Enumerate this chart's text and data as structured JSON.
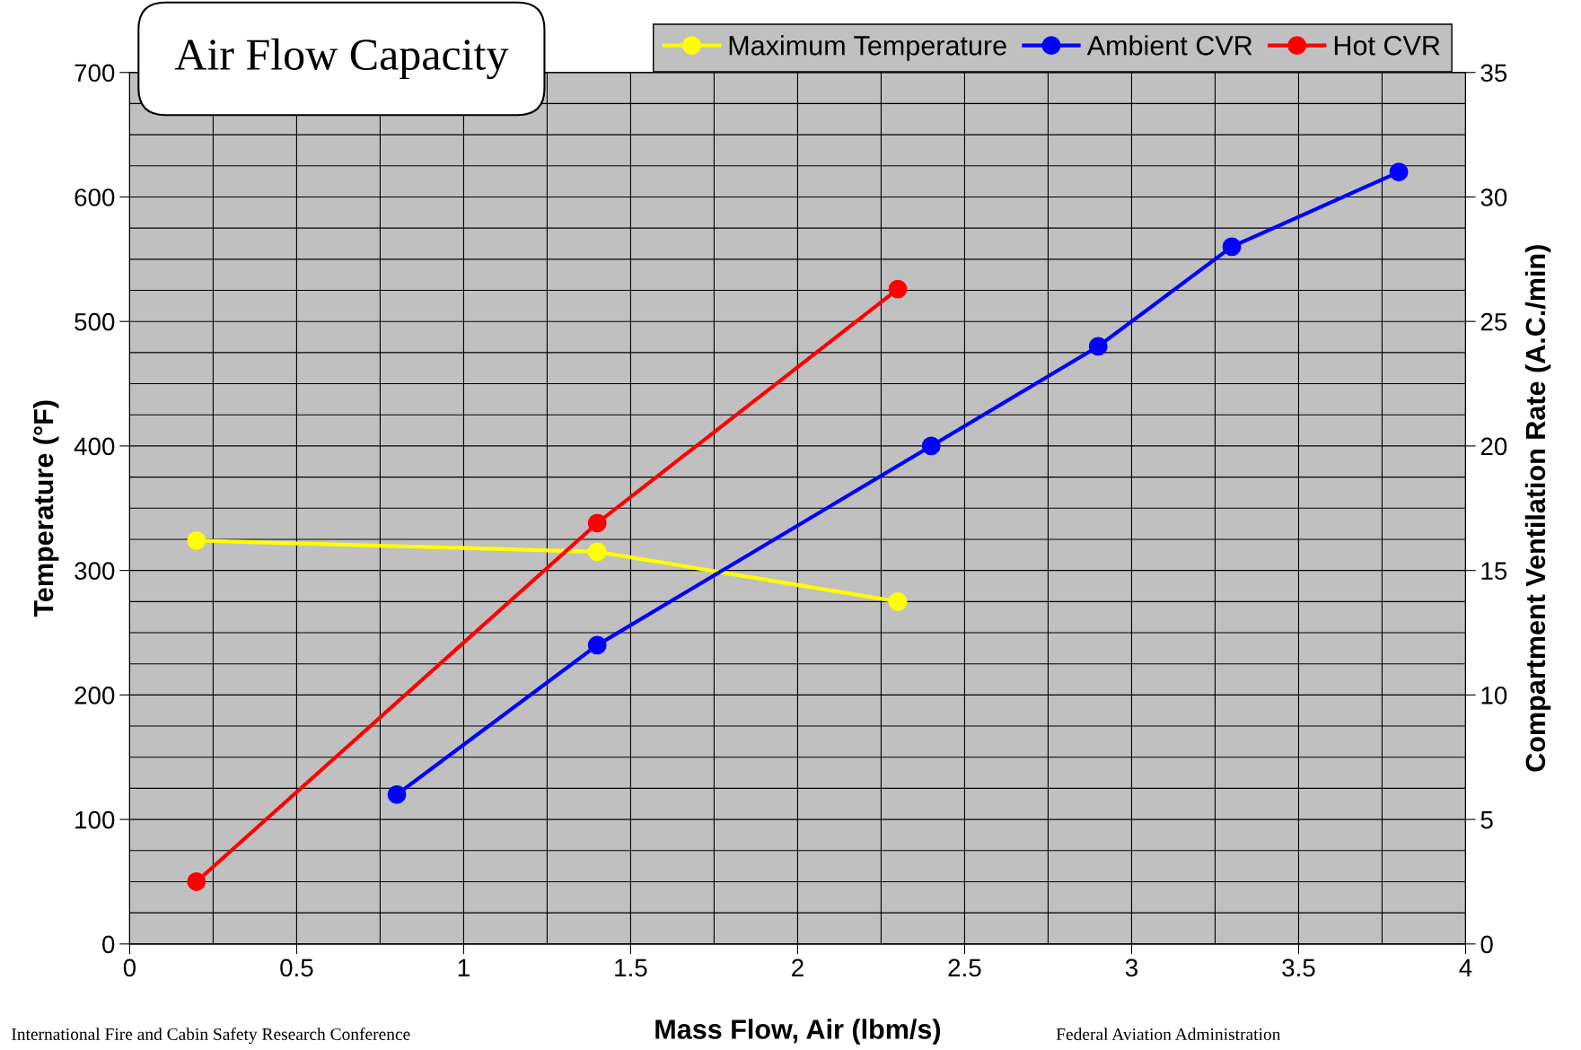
{
  "chart_data": {
    "type": "line",
    "title": "Air Flow Capacity",
    "xlabel": "Mass Flow, Air (lbm/s)",
    "ylabel": "Temperature (°F)",
    "y2label": "Compartment Ventilation Rate (A.C./min)",
    "series": [
      {
        "name": "Maximum Temperature",
        "color": "#ffff00",
        "x": [
          0.2,
          1.4,
          2.3
        ],
        "values": [
          324,
          315,
          275
        ]
      },
      {
        "name": "Ambient CVR",
        "color": "#0000ff",
        "axis": "y2",
        "x": [
          0.8,
          1.4,
          2.4,
          2.9,
          3.3,
          3.8
        ],
        "values": [
          6,
          12,
          20,
          24,
          28,
          31
        ]
      },
      {
        "name": "Hot CVR",
        "color": "#ff0000",
        "axis": "y2",
        "x": [
          0.2,
          1.4,
          2.3
        ],
        "values": [
          2.5,
          16.9,
          26.3
        ]
      }
    ],
    "xlim": [
      0,
      4
    ],
    "xticks": [
      0,
      0.5,
      1,
      1.5,
      2,
      2.5,
      3,
      3.5,
      4
    ],
    "ylim": [
      0,
      700
    ],
    "yticks": [
      0,
      100,
      200,
      300,
      400,
      500,
      600,
      700
    ],
    "y2lim": [
      0,
      35
    ],
    "y2ticks": [
      0,
      5,
      10,
      15,
      20,
      25,
      30,
      35
    ],
    "grid": true,
    "legend": "top right",
    "marker": "circle",
    "line_style": "solid",
    "annotations": [
      "International Fire and Cabin Safety Research Conference",
      "Federal Aviation Administration"
    ]
  }
}
